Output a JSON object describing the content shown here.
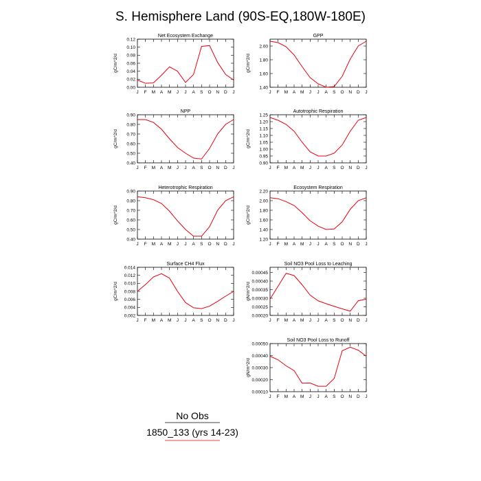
{
  "figure": {
    "title": "S. Hemisphere Land (90S-EQ,180W-180E)",
    "line_color": "#e8000b"
  },
  "legend": {
    "obs_label": "No Obs",
    "model_label": "1850_133 (yrs 14-23)",
    "obs_color": "#000000",
    "model_color": "#e8000b"
  },
  "chart_data": [
    {
      "type": "line",
      "title": "Net Ecosystem Exchange",
      "ylabel": "gC/m^2/d",
      "categories": [
        "J",
        "F",
        "M",
        "A",
        "M",
        "J",
        "J",
        "A",
        "S",
        "O",
        "N",
        "D",
        "J"
      ],
      "ylim": [
        0,
        0.12
      ],
      "yticks": [
        0,
        0.02,
        0.04,
        0.06,
        0.08,
        0.1,
        0.12
      ],
      "ytick_labels": [
        "0.00",
        "0.02",
        "0.04",
        "0.06",
        "0.08",
        "0.10",
        "0.12"
      ],
      "series": [
        {
          "values": [
            0.018,
            0.01,
            0.011,
            0.03,
            0.051,
            0.04,
            0.012,
            0.032,
            0.102,
            0.104,
            0.062,
            0.032,
            0.018
          ]
        }
      ]
    },
    {
      "type": "line",
      "title": "GPP",
      "ylabel": "gC/m^2/d",
      "categories": [
        "J",
        "F",
        "M",
        "A",
        "M",
        "J",
        "J",
        "A",
        "S",
        "O",
        "N",
        "D",
        "J"
      ],
      "ylim": [
        1.4,
        2.1
      ],
      "yticks": [
        1.4,
        1.6,
        1.8,
        2.0
      ],
      "ytick_labels": [
        "1.40",
        "1.60",
        "1.80",
        "2.00"
      ],
      "series": [
        {
          "values": [
            2.07,
            2.05,
            1.99,
            1.87,
            1.7,
            1.54,
            1.45,
            1.4,
            1.41,
            1.56,
            1.81,
            2.0,
            2.07
          ]
        }
      ]
    },
    {
      "type": "line",
      "title": "NPP",
      "ylabel": "gC/m^2/d",
      "categories": [
        "J",
        "F",
        "M",
        "A",
        "M",
        "J",
        "J",
        "A",
        "S",
        "O",
        "N",
        "D",
        "J"
      ],
      "ylim": [
        0.4,
        0.9
      ],
      "yticks": [
        0.4,
        0.5,
        0.6,
        0.7,
        0.8,
        0.9
      ],
      "ytick_labels": [
        "0.40",
        "0.50",
        "0.60",
        "0.70",
        "0.80",
        "0.90"
      ],
      "series": [
        {
          "values": [
            0.85,
            0.85,
            0.82,
            0.75,
            0.65,
            0.56,
            0.5,
            0.45,
            0.44,
            0.55,
            0.7,
            0.8,
            0.85
          ]
        }
      ]
    },
    {
      "type": "line",
      "title": "Autotrophic Respiration",
      "ylabel": "gC/m^2/d",
      "categories": [
        "J",
        "F",
        "M",
        "A",
        "M",
        "J",
        "J",
        "A",
        "S",
        "O",
        "N",
        "D",
        "J"
      ],
      "ylim": [
        0.9,
        1.25
      ],
      "yticks": [
        0.9,
        0.95,
        1.0,
        1.05,
        1.1,
        1.15,
        1.2,
        1.25
      ],
      "ytick_labels": [
        "0.90",
        "0.95",
        "1.00",
        "1.05",
        "1.10",
        "1.15",
        "1.20",
        "1.25"
      ],
      "series": [
        {
          "values": [
            1.23,
            1.21,
            1.18,
            1.13,
            1.05,
            0.98,
            0.95,
            0.95,
            0.97,
            1.03,
            1.13,
            1.21,
            1.23
          ]
        }
      ]
    },
    {
      "type": "line",
      "title": "Heterotrophic Respiration",
      "ylabel": "gC/m^2/d",
      "categories": [
        "J",
        "F",
        "M",
        "A",
        "M",
        "J",
        "J",
        "A",
        "S",
        "O",
        "N",
        "D",
        "J"
      ],
      "ylim": [
        0.4,
        0.9
      ],
      "yticks": [
        0.4,
        0.5,
        0.6,
        0.7,
        0.8,
        0.9
      ],
      "ytick_labels": [
        "0.40",
        "0.50",
        "0.60",
        "0.70",
        "0.80",
        "0.90"
      ],
      "series": [
        {
          "values": [
            0.84,
            0.83,
            0.81,
            0.77,
            0.69,
            0.59,
            0.5,
            0.43,
            0.43,
            0.53,
            0.7,
            0.8,
            0.84
          ]
        }
      ]
    },
    {
      "type": "line",
      "title": "Ecosystem Respiration",
      "ylabel": "gC/m^2/d",
      "categories": [
        "J",
        "F",
        "M",
        "A",
        "M",
        "J",
        "J",
        "A",
        "S",
        "O",
        "N",
        "D",
        "J"
      ],
      "ylim": [
        1.2,
        2.2
      ],
      "yticks": [
        1.2,
        1.4,
        1.6,
        1.8,
        2.0,
        2.2
      ],
      "ytick_labels": [
        "1.20",
        "1.40",
        "1.60",
        "1.80",
        "2.00",
        "2.20"
      ],
      "series": [
        {
          "values": [
            2.06,
            2.04,
            1.98,
            1.9,
            1.75,
            1.58,
            1.47,
            1.4,
            1.41,
            1.56,
            1.82,
            2.0,
            2.06
          ]
        }
      ]
    },
    {
      "type": "line",
      "title": "Surface CH4 Flux",
      "ylabel": "gC/m^2/d",
      "categories": [
        "J",
        "F",
        "M",
        "A",
        "M",
        "J",
        "J",
        "A",
        "S",
        "O",
        "N",
        "D",
        "J"
      ],
      "ylim": [
        0.002,
        0.014
      ],
      "yticks": [
        0.002,
        0.004,
        0.006,
        0.008,
        0.01,
        0.012,
        0.014
      ],
      "ytick_labels": [
        "0.002",
        "0.004",
        "0.006",
        "0.008",
        "0.010",
        "0.012",
        "0.014"
      ],
      "series": [
        {
          "values": [
            0.008,
            0.0097,
            0.0116,
            0.0124,
            0.0113,
            0.008,
            0.0052,
            0.0039,
            0.0037,
            0.0043,
            0.0055,
            0.0068,
            0.008
          ]
        }
      ]
    },
    {
      "type": "line",
      "title": "Soil NO3 Pool Loss to Leaching",
      "ylabel": "gN/m^2/d",
      "categories": [
        "J",
        "F",
        "M",
        "A",
        "M",
        "J",
        "J",
        "A",
        "S",
        "O",
        "N",
        "D",
        "J"
      ],
      "ylim": [
        0.0002,
        0.00048
      ],
      "yticks": [
        0.0002,
        0.00025,
        0.0003,
        0.00035,
        0.0004,
        0.00045
      ],
      "ytick_labels": [
        "0.00020",
        "0.00025",
        "0.00030",
        "0.00035",
        "0.00040",
        "0.00045"
      ],
      "series": [
        {
          "values": [
            0.000295,
            0.00037,
            0.000445,
            0.000432,
            0.000378,
            0.000318,
            0.000285,
            0.000268,
            0.000253,
            0.000238,
            0.000225,
            0.000285,
            0.000295
          ]
        }
      ]
    },
    {
      "type": "line",
      "title": "Soil NO3 Pool Loss to Runoff",
      "ylabel": "gN/m^2/d",
      "categories": [
        "J",
        "F",
        "M",
        "A",
        "M",
        "J",
        "J",
        "A",
        "S",
        "O",
        "N",
        "D",
        "J"
      ],
      "ylim": [
        0.0001,
        0.0005
      ],
      "yticks": [
        0.0001,
        0.0002,
        0.0003,
        0.0004,
        0.0005
      ],
      "ytick_labels": [
        "0.00010",
        "0.00020",
        "0.00030",
        "0.00040",
        "0.00050"
      ],
      "series": [
        {
          "values": [
            0.000395,
            0.000365,
            0.000315,
            0.000275,
            0.00017,
            0.000172,
            0.000145,
            0.000145,
            0.00021,
            0.00044,
            0.00047,
            0.000445,
            0.000395
          ]
        }
      ]
    }
  ]
}
